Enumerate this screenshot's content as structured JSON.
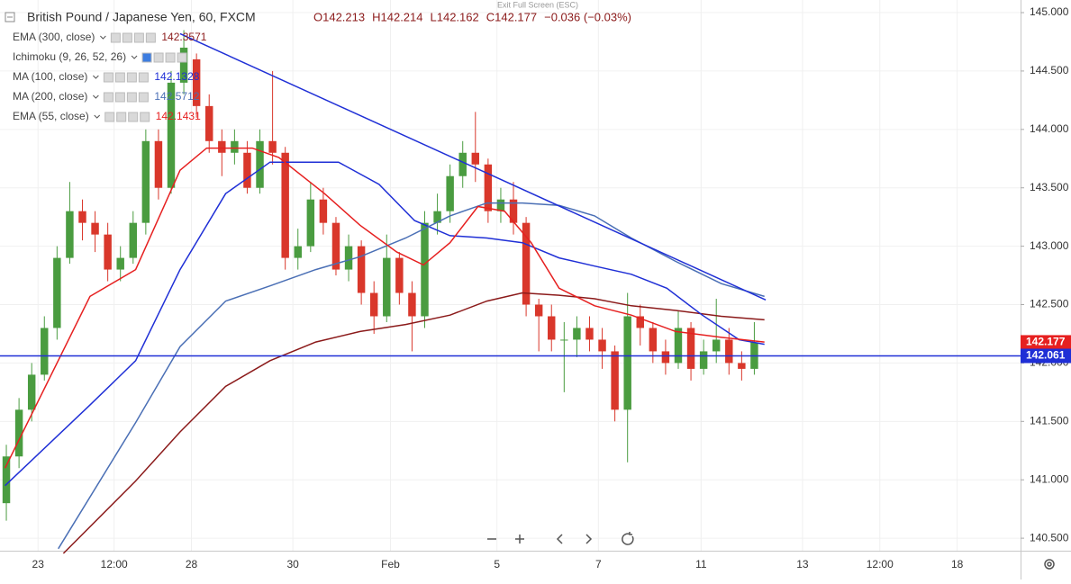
{
  "ui": {
    "exit_fullscreen": "Exit Full Screen (ESC)"
  },
  "chart_data": {
    "type": "candlestick",
    "title": "British Pound / Japanese Yen, 60, FXCM",
    "header_values": [
      "O142.213",
      "H142.214",
      "L142.162",
      "C142.177",
      "−0.036 (−0.03%)"
    ],
    "up_color": "#4a9c40",
    "down_color": "#d9372b",
    "x": [
      0.5,
      1.5,
      2.5,
      3.5,
      4.5,
      5.5,
      6.5,
      7.5,
      8.5,
      9.5,
      10.5,
      11.5,
      12.5,
      13.5,
      14.5,
      15.5,
      16.5,
      17.5,
      18.5,
      19.5,
      20.5,
      21.5,
      22.5,
      23.5,
      24.5,
      25.5,
      26.5,
      27.5,
      28.5,
      29.5,
      30.5,
      31.5,
      32.5,
      33.5,
      34.5,
      35.5,
      36.5,
      37.5,
      38.5,
      39.5,
      40.5,
      41.5,
      42.5,
      43.5,
      44.5,
      45.5,
      46.5,
      47.5,
      48.5,
      49.5,
      50.5,
      51.5,
      52.5,
      53.5,
      54.5,
      55.5,
      56.5,
      57.5,
      58.5,
      59.5
    ],
    "open": [
      140.8,
      141.2,
      141.6,
      141.9,
      142.3,
      142.9,
      143.3,
      143.2,
      143.1,
      142.8,
      142.9,
      143.2,
      143.9,
      143.5,
      144.4,
      144.6,
      144.2,
      143.9,
      143.8,
      143.8,
      143.5,
      143.9,
      143.8,
      142.9,
      143.0,
      143.4,
      143.2,
      142.8,
      143.0,
      142.6,
      142.4,
      142.9,
      142.6,
      142.4,
      143.2,
      143.3,
      143.6,
      143.8,
      143.7,
      143.3,
      143.4,
      143.2,
      142.5,
      142.4,
      142.2,
      142.2,
      142.3,
      142.2,
      142.1,
      141.6,
      142.4,
      142.3,
      142.1,
      142.0,
      142.3,
      141.95,
      142.1,
      142.2,
      142.0,
      141.95
    ],
    "high": [
      141.3,
      141.7,
      142.0,
      142.4,
      143.0,
      143.55,
      143.4,
      143.3,
      143.2,
      143.0,
      143.3,
      144.0,
      144.0,
      144.5,
      144.85,
      144.65,
      144.3,
      144.0,
      144.0,
      143.9,
      144.0,
      144.5,
      143.85,
      143.15,
      143.55,
      143.5,
      143.25,
      143.1,
      143.05,
      142.7,
      143.1,
      142.95,
      142.7,
      143.3,
      143.45,
      143.7,
      143.9,
      144.15,
      143.75,
      143.5,
      143.55,
      143.25,
      142.55,
      142.5,
      142.35,
      142.4,
      142.4,
      142.3,
      142.15,
      142.6,
      142.5,
      142.35,
      142.2,
      142.45,
      142.35,
      142.2,
      142.55,
      142.3,
      142.1,
      142.35
    ],
    "low": [
      140.65,
      141.1,
      141.5,
      141.85,
      142.2,
      142.85,
      143.05,
      142.95,
      142.7,
      142.7,
      142.85,
      143.1,
      143.4,
      143.45,
      144.3,
      144.1,
      143.8,
      143.6,
      143.7,
      143.45,
      143.45,
      143.7,
      142.8,
      142.8,
      142.95,
      143.1,
      142.75,
      142.7,
      142.5,
      142.25,
      142.35,
      142.5,
      142.1,
      142.3,
      143.1,
      143.2,
      143.5,
      143.55,
      143.2,
      143.2,
      143.1,
      142.4,
      142.1,
      142.1,
      141.75,
      142.05,
      142.1,
      141.95,
      141.5,
      141.15,
      142.15,
      142.0,
      141.9,
      141.95,
      141.85,
      141.9,
      142.0,
      141.9,
      141.85,
      141.9
    ],
    "close": [
      141.2,
      141.6,
      141.9,
      142.3,
      142.9,
      143.3,
      143.2,
      143.1,
      142.8,
      142.9,
      143.2,
      143.9,
      143.5,
      144.4,
      144.7,
      144.2,
      143.9,
      143.8,
      143.9,
      143.5,
      143.9,
      143.8,
      142.9,
      143.0,
      143.4,
      143.2,
      142.8,
      143.0,
      142.6,
      142.4,
      142.9,
      142.6,
      142.4,
      143.2,
      143.3,
      143.6,
      143.8,
      143.7,
      143.3,
      143.4,
      143.2,
      142.5,
      142.4,
      142.2,
      142.2,
      142.3,
      142.2,
      142.1,
      141.6,
      142.4,
      142.3,
      142.1,
      142.0,
      142.3,
      141.95,
      142.1,
      142.2,
      142.0,
      141.95,
      142.177
    ],
    "series": [
      {
        "name": "EMA (300, close)",
        "value_label": "142.3571",
        "color": "#8b1a1a",
        "x": [
          5.0,
          10.7,
          14.2,
          17.8,
          21.3,
          24.9,
          28.4,
          32.0,
          35.5,
          38.4,
          41.2,
          44.1,
          46.9,
          49.8,
          53.3,
          56.9,
          60.3
        ],
        "values": [
          140.37,
          140.99,
          141.41,
          141.8,
          142.02,
          142.18,
          142.27,
          142.33,
          142.41,
          142.53,
          142.6,
          142.58,
          142.55,
          142.49,
          142.45,
          142.4,
          142.37
        ]
      },
      {
        "name": "MA (100, close)",
        "value_label": "142.1328",
        "color": "#1f2fd6",
        "x": [
          0.4,
          7.1,
          10.7,
          14.2,
          17.8,
          21.3,
          24.2,
          26.7,
          29.9,
          32.7,
          35.5,
          38.4,
          41.2,
          44.1,
          46.9,
          49.8,
          52.6,
          55.4,
          58.3,
          60.3
        ],
        "values": [
          140.95,
          141.64,
          142.02,
          142.8,
          143.45,
          143.72,
          143.72,
          143.72,
          143.53,
          143.22,
          143.09,
          143.07,
          143.03,
          142.9,
          142.83,
          142.76,
          142.64,
          142.41,
          142.2,
          142.16
        ]
      },
      {
        "name": "MA (200, close)",
        "value_label": "142.5712",
        "color": "#4a6fb5",
        "x": [
          4.6,
          10.7,
          14.2,
          17.8,
          21.3,
          24.9,
          28.4,
          32.0,
          35.5,
          38.4,
          41.2,
          44.1,
          46.9,
          49.8,
          53.3,
          56.9,
          60.3
        ],
        "values": [
          140.41,
          141.49,
          142.14,
          142.53,
          142.66,
          142.8,
          142.91,
          143.07,
          143.26,
          143.37,
          143.37,
          143.35,
          143.26,
          143.07,
          142.87,
          142.68,
          142.57
        ]
      },
      {
        "name": "EMA (55, close)",
        "value_label": "142.1431",
        "color": "#e62020",
        "x": [
          0.4,
          7.1,
          10.7,
          14.2,
          16.3,
          19.9,
          22.0,
          25.6,
          28.4,
          31.3,
          33.4,
          35.5,
          37.7,
          39.8,
          41.9,
          44.1,
          46.9,
          49.8,
          53.3,
          56.9,
          60.3
        ],
        "values": [
          141.1,
          142.57,
          142.8,
          143.65,
          143.84,
          143.84,
          143.76,
          143.45,
          143.18,
          142.95,
          142.84,
          143.03,
          143.34,
          143.3,
          143.03,
          142.64,
          142.49,
          142.41,
          142.27,
          142.22,
          142.18
        ]
      }
    ],
    "ichimoku": {
      "name": "Ichimoku (9, 26, 52, 26)"
    },
    "trendline": {
      "color": "#1f2fd6",
      "x": [
        14.2,
        60.4
      ],
      "values": [
        144.82,
        142.54
      ]
    },
    "price_lines": [
      {
        "value": 142.061,
        "color": "#1f2fd6"
      }
    ],
    "last_price": {
      "value": 142.177,
      "color": "#e62020"
    },
    "xlim": [
      0,
      80.5
    ],
    "ylim": [
      140.393,
      145.108
    ],
    "yticks": [
      {
        "value": 140.5,
        "label": "140.500"
      },
      {
        "value": 141,
        "label": "141.000"
      },
      {
        "value": 141.5,
        "label": "141.500"
      },
      {
        "value": 142,
        "label": "142.000"
      },
      {
        "value": 142.5,
        "label": "142.500"
      },
      {
        "value": 143,
        "label": "143.000"
      },
      {
        "value": 143.5,
        "label": "143.500"
      },
      {
        "value": 144,
        "label": "144.000"
      },
      {
        "value": 144.5,
        "label": "144.500"
      },
      {
        "value": 145,
        "label": "145.000"
      }
    ],
    "xticks": [
      {
        "value": 3,
        "label": "23"
      },
      {
        "value": 9,
        "label": "12:00"
      },
      {
        "value": 15.1,
        "label": "28"
      },
      {
        "value": 23.1,
        "label": "30"
      },
      {
        "value": 30.8,
        "label": "Feb"
      },
      {
        "value": 39.2,
        "label": "5"
      },
      {
        "value": 47.2,
        "label": "7"
      },
      {
        "value": 55.3,
        "label": "11"
      },
      {
        "value": 63.3,
        "label": "13"
      },
      {
        "value": 69.4,
        "label": "12:00"
      },
      {
        "value": 75.5,
        "label": "18"
      }
    ]
  }
}
